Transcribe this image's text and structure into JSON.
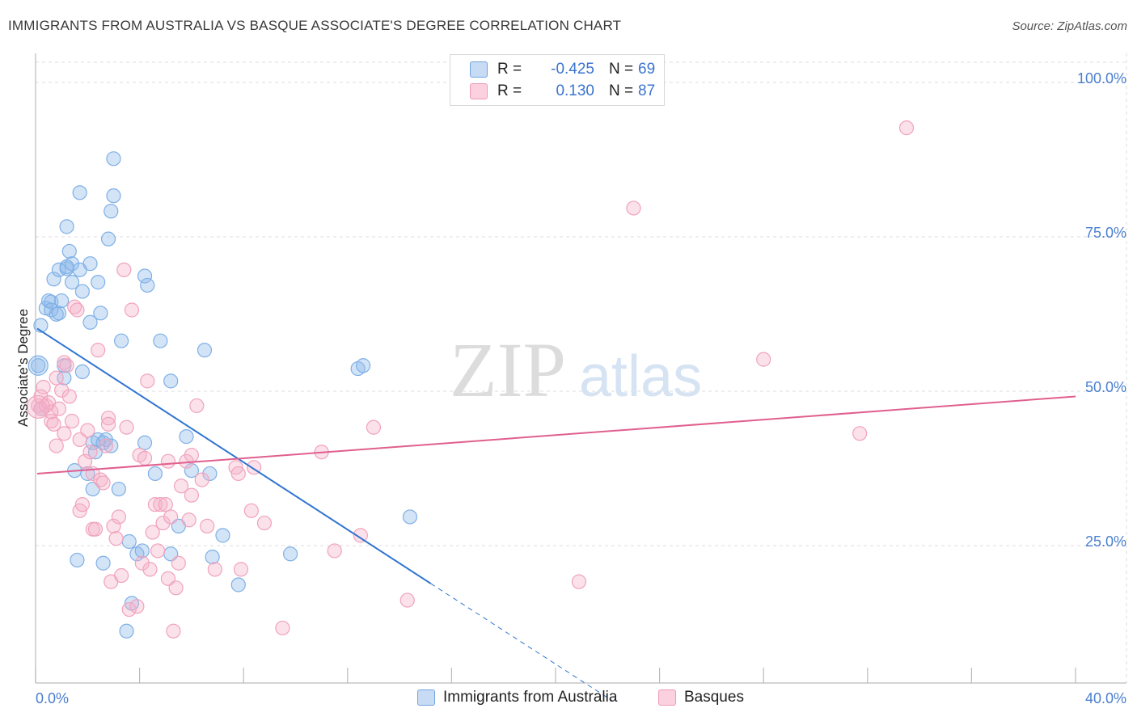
{
  "title": "IMMIGRANTS FROM AUSTRALIA VS BASQUE ASSOCIATE'S DEGREE CORRELATION CHART",
  "source": "Source: ZipAtlas.com",
  "watermark": {
    "zip": "ZIP",
    "atlas": "atlas"
  },
  "colors": {
    "blue": "#7fb0e6",
    "blue_line": "#2f74d0",
    "pink": "#f0a3bd",
    "pink_line": "#e05f8e",
    "tick_text": "#4a7fcf",
    "grid": "#dcdcdc"
  },
  "legend": {
    "rows": [
      {
        "r_label": "R =",
        "r_value": "-0.425",
        "n_label": "N =",
        "n_value": "69"
      },
      {
        "r_label": "R =",
        "r_value": "0.130",
        "n_label": "N =",
        "n_value": "87"
      }
    ]
  },
  "bottom_legend": [
    "Immigrants from Australia",
    "Basques"
  ],
  "chart_data": {
    "type": "scatter",
    "title": "IMMIGRANTS FROM AUSTRALIA VS BASQUE ASSOCIATE'S DEGREE CORRELATION CHART",
    "xlabel": "",
    "ylabel": "Associate's Degree",
    "xlim": [
      0,
      40
    ],
    "ylim": [
      0,
      102
    ],
    "x_tick_labels": [
      "0.0%",
      "40.0%"
    ],
    "y_ticks": [
      25,
      50,
      75,
      100
    ],
    "y_tick_labels": [
      "25.0%",
      "50.0%",
      "75.0%",
      "100.0%"
    ],
    "grid": true,
    "series": [
      {
        "name": "Immigrants from Australia",
        "r": -0.425,
        "n": 69,
        "trend": {
          "x0": 0,
          "y0": 59.5,
          "x1": 15.2,
          "y1": 18.2,
          "dash_to_x": 22.2
        },
        "points": [
          [
            0.1,
            53.5
          ],
          [
            0.2,
            46.5
          ],
          [
            0.2,
            60.0
          ],
          [
            0.4,
            62.8
          ],
          [
            0.5,
            64.0
          ],
          [
            0.6,
            63.8
          ],
          [
            0.6,
            62.5
          ],
          [
            0.7,
            67.5
          ],
          [
            0.8,
            61.8
          ],
          [
            0.9,
            69.0
          ],
          [
            0.9,
            62.0
          ],
          [
            1.0,
            64.0
          ],
          [
            1.1,
            53.5
          ],
          [
            1.1,
            51.5
          ],
          [
            1.2,
            69.2
          ],
          [
            1.2,
            69.5
          ],
          [
            1.2,
            76.0
          ],
          [
            1.3,
            72.0
          ],
          [
            1.4,
            70.0
          ],
          [
            1.4,
            67.0
          ],
          [
            1.5,
            36.5
          ],
          [
            1.6,
            22.0
          ],
          [
            1.7,
            69.0
          ],
          [
            1.7,
            81.5
          ],
          [
            1.8,
            65.5
          ],
          [
            1.8,
            52.5
          ],
          [
            2.0,
            36.0
          ],
          [
            2.1,
            60.5
          ],
          [
            2.1,
            70.0
          ],
          [
            2.2,
            41.0
          ],
          [
            2.2,
            33.5
          ],
          [
            2.3,
            39.5
          ],
          [
            2.4,
            41.5
          ],
          [
            2.4,
            67.0
          ],
          [
            2.5,
            62.0
          ],
          [
            2.6,
            41.0
          ],
          [
            2.6,
            21.5
          ],
          [
            2.7,
            41.5
          ],
          [
            2.8,
            74.0
          ],
          [
            2.9,
            40.5
          ],
          [
            2.9,
            78.5
          ],
          [
            3.0,
            81.0
          ],
          [
            3.0,
            87.0
          ],
          [
            3.2,
            33.5
          ],
          [
            3.3,
            57.5
          ],
          [
            3.5,
            10.5
          ],
          [
            3.6,
            25.0
          ],
          [
            3.7,
            15.0
          ],
          [
            3.9,
            23.0
          ],
          [
            4.1,
            23.5
          ],
          [
            4.2,
            41.0
          ],
          [
            4.2,
            68.0
          ],
          [
            4.3,
            66.5
          ],
          [
            4.6,
            36.0
          ],
          [
            4.8,
            57.5
          ],
          [
            5.2,
            23.0
          ],
          [
            5.2,
            51.0
          ],
          [
            5.5,
            27.5
          ],
          [
            5.8,
            42.0
          ],
          [
            6.0,
            36.5
          ],
          [
            6.5,
            56.0
          ],
          [
            6.7,
            36.0
          ],
          [
            6.8,
            22.5
          ],
          [
            7.2,
            26.0
          ],
          [
            7.8,
            18.0
          ],
          [
            9.8,
            23.0
          ],
          [
            12.4,
            53.0
          ],
          [
            12.6,
            53.5
          ],
          [
            14.4,
            29.0
          ]
        ]
      },
      {
        "name": "Basques",
        "r": 0.13,
        "n": 87,
        "trend": {
          "x0": 0,
          "y0": 36.0,
          "x1": 40,
          "y1": 48.5
        },
        "points": [
          [
            0.1,
            47.0
          ],
          [
            0.2,
            48.5
          ],
          [
            0.2,
            46.5
          ],
          [
            0.3,
            50.0
          ],
          [
            0.4,
            47.0
          ],
          [
            0.5,
            47.5
          ],
          [
            0.6,
            44.5
          ],
          [
            0.6,
            46.0
          ],
          [
            0.7,
            44.0
          ],
          [
            0.8,
            51.5
          ],
          [
            0.8,
            40.5
          ],
          [
            0.9,
            46.5
          ],
          [
            1.0,
            49.5
          ],
          [
            1.1,
            42.5
          ],
          [
            1.1,
            54.0
          ],
          [
            1.2,
            53.5
          ],
          [
            1.3,
            48.5
          ],
          [
            1.4,
            44.5
          ],
          [
            1.5,
            63.0
          ],
          [
            1.6,
            62.5
          ],
          [
            1.7,
            41.5
          ],
          [
            1.7,
            30.0
          ],
          [
            1.8,
            31.0
          ],
          [
            1.9,
            38.0
          ],
          [
            2.0,
            43.0
          ],
          [
            2.1,
            39.5
          ],
          [
            2.2,
            36.0
          ],
          [
            2.2,
            27.0
          ],
          [
            2.3,
            27.0
          ],
          [
            2.4,
            56.0
          ],
          [
            2.5,
            35.0
          ],
          [
            2.6,
            34.5
          ],
          [
            2.7,
            40.5
          ],
          [
            2.8,
            45.0
          ],
          [
            2.8,
            44.0
          ],
          [
            2.9,
            18.5
          ],
          [
            3.0,
            27.5
          ],
          [
            3.1,
            25.5
          ],
          [
            3.2,
            29.0
          ],
          [
            3.3,
            19.5
          ],
          [
            3.4,
            69.0
          ],
          [
            3.5,
            43.5
          ],
          [
            3.6,
            14.0
          ],
          [
            3.7,
            62.5
          ],
          [
            3.9,
            14.5
          ],
          [
            4.0,
            39.0
          ],
          [
            4.1,
            21.5
          ],
          [
            4.2,
            38.5
          ],
          [
            4.3,
            51.0
          ],
          [
            4.4,
            20.5
          ],
          [
            4.5,
            26.5
          ],
          [
            4.6,
            31.0
          ],
          [
            4.7,
            23.5
          ],
          [
            4.8,
            31.0
          ],
          [
            4.9,
            28.0
          ],
          [
            5.0,
            31.0
          ],
          [
            5.1,
            38.0
          ],
          [
            5.1,
            19.0
          ],
          [
            5.2,
            29.0
          ],
          [
            5.3,
            10.5
          ],
          [
            5.4,
            17.5
          ],
          [
            5.5,
            21.5
          ],
          [
            5.6,
            34.0
          ],
          [
            5.8,
            38.0
          ],
          [
            5.9,
            28.5
          ],
          [
            6.0,
            39.0
          ],
          [
            6.0,
            32.5
          ],
          [
            6.2,
            47.0
          ],
          [
            6.4,
            35.0
          ],
          [
            6.6,
            27.5
          ],
          [
            6.9,
            20.5
          ],
          [
            7.7,
            37.0
          ],
          [
            7.8,
            36.0
          ],
          [
            7.9,
            20.5
          ],
          [
            8.3,
            30.0
          ],
          [
            8.4,
            37.0
          ],
          [
            8.8,
            28.0
          ],
          [
            9.5,
            11.0
          ],
          [
            11.0,
            39.5
          ],
          [
            11.5,
            23.5
          ],
          [
            12.5,
            26.0
          ],
          [
            13.0,
            43.5
          ],
          [
            14.3,
            15.5
          ],
          [
            20.9,
            18.5
          ],
          [
            23.0,
            79.0
          ],
          [
            28.0,
            54.5
          ],
          [
            31.7,
            42.5
          ],
          [
            33.5,
            92.0
          ]
        ]
      }
    ]
  }
}
